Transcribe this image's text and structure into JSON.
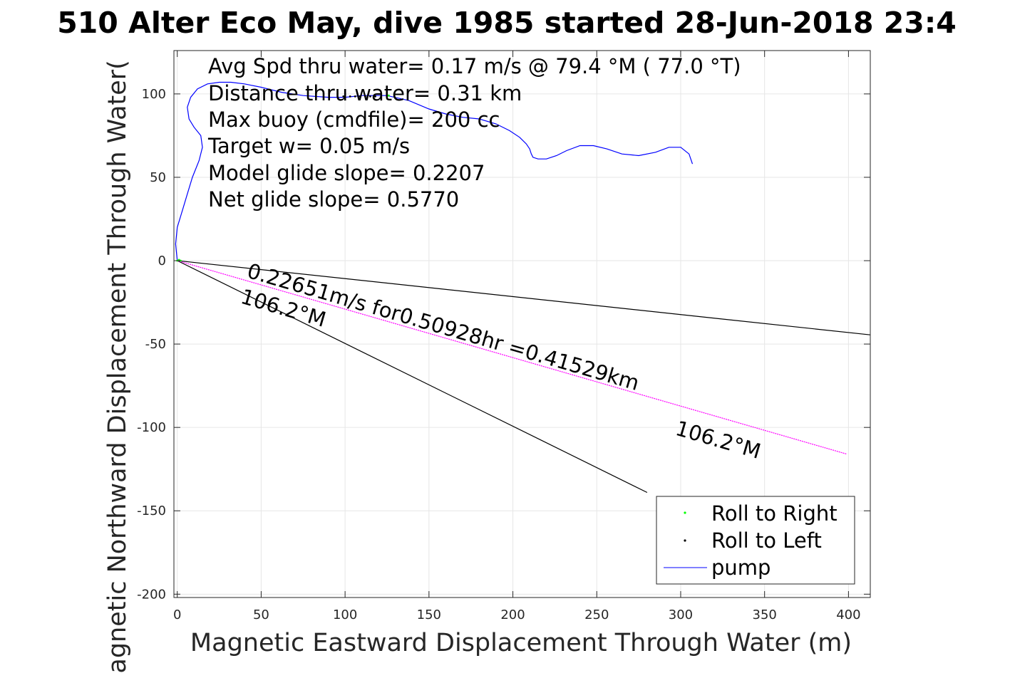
{
  "chart_data": {
    "type": "line",
    "title": "510 Alter Eco May, dive 1985 started 28-Jun-2018 23:4",
    "xlabel": "Magnetic Eastward Displacement Through Water (m)",
    "ylabel": "Magnetic Northward Displacement Through Water(",
    "xlim": [
      -2,
      413
    ],
    "ylim": [
      -202,
      126
    ],
    "xticks": [
      0,
      50,
      100,
      150,
      200,
      250,
      300,
      350,
      400
    ],
    "yticks": [
      -200,
      -150,
      -100,
      -50,
      0,
      50,
      100
    ],
    "grid": true,
    "info_lines": [
      "Avg Spd thru water=  0.17 m/s @  79.4 °M ( 77.0 °T)",
      "Distance thru water=  0.31 km",
      "Max buoy (cmdfile)= 200 cc",
      "Target w= 0.05 m/s",
      "Model glide slope= 0.2207",
      "Net glide slope= 0.5770"
    ],
    "annotations": {
      "current_vector": "0.22651m/s for0.50928hr =0.41529km",
      "heading_near": "106.2°M",
      "heading_far": "106.2°M"
    },
    "legend": {
      "position": "bottom-right",
      "entries": [
        "Roll to Right",
        "Roll to Left",
        "pump"
      ]
    },
    "series": [
      {
        "name": "pump",
        "color": "#0000ff",
        "x": [
          0,
          -1,
          0,
          3,
          6,
          9,
          13,
          15,
          14,
          10,
          7,
          6,
          8,
          12,
          18,
          25,
          32,
          40,
          50,
          62,
          75,
          90,
          100,
          110,
          125,
          138,
          150,
          160,
          170,
          180,
          190,
          198,
          204,
          208,
          210,
          211,
          212,
          215,
          220,
          226,
          232,
          240,
          248,
          256,
          265,
          275,
          285,
          293,
          300,
          305,
          307
        ],
        "y": [
          0,
          10,
          20,
          30,
          40,
          50,
          60,
          68,
          75,
          80,
          85,
          92,
          98,
          103,
          106,
          107,
          107,
          106,
          104,
          101,
          99,
          98,
          98,
          99,
          99,
          96,
          91,
          88,
          86,
          85,
          82,
          78,
          74,
          70,
          67,
          64,
          62,
          61,
          61,
          63,
          66,
          69,
          69,
          67,
          64,
          63,
          65,
          68,
          68,
          64,
          58
        ]
      },
      {
        "name": "Roll to Right",
        "color": "#00ff00",
        "x": [
          0,
          1,
          2,
          125,
          126
        ],
        "y": [
          0,
          0.5,
          0,
          99,
          99
        ]
      },
      {
        "name": "Roll to Left",
        "color": "#000000",
        "x": [
          99,
          103,
          106,
          109,
          112,
          115,
          118
        ],
        "y": [
          98.5,
          98.5,
          98.5,
          98.5,
          98.5,
          98.5,
          98.5
        ]
      },
      {
        "name": "current",
        "color": "#ff00ff",
        "x": [
          0,
          399
        ],
        "y": [
          0,
          -116
        ]
      },
      {
        "name": "heading-line-steep",
        "color": "#000000",
        "x": [
          0,
          280
        ],
        "y": [
          0,
          -139
        ]
      },
      {
        "name": "heading-line-shallow",
        "color": "#000000",
        "x": [
          0,
          413
        ],
        "y": [
          0,
          -44.5
        ]
      }
    ]
  }
}
